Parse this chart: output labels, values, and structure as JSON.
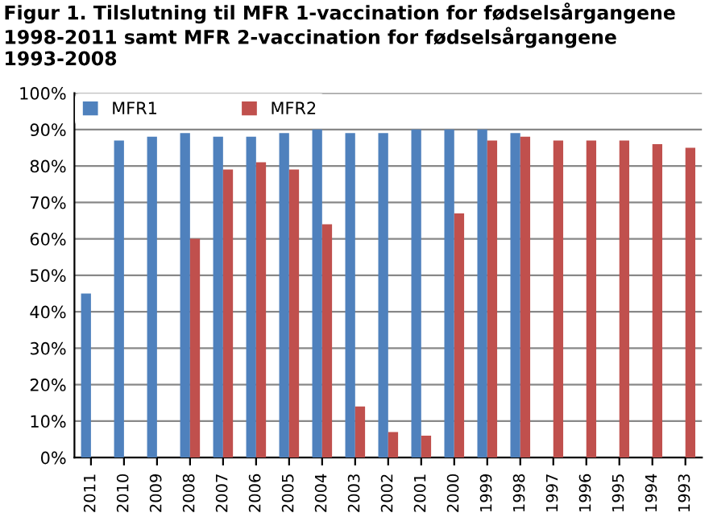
{
  "chart_data": {
    "type": "bar",
    "title": "Figur 1. Tilslutning til MFR 1-vaccination for fødselsårgangene 1998-2011 samt MFR 2-vaccination for fødselsårgangene 1993-2008",
    "categories": [
      "2011",
      "2010",
      "2009",
      "2008",
      "2007",
      "2006",
      "2005",
      "2004",
      "2003",
      "2002",
      "2001",
      "2000",
      "1999",
      "1998",
      "1997",
      "1996",
      "1995",
      "1994",
      "1993"
    ],
    "series": [
      {
        "name": "MFR1",
        "color": "#4f81bd",
        "values": [
          45,
          87,
          88,
          89,
          88,
          88,
          89,
          90,
          89,
          89,
          90,
          90,
          90,
          89,
          null,
          null,
          null,
          null,
          null
        ]
      },
      {
        "name": "MFR2",
        "color": "#c0504d",
        "values": [
          null,
          null,
          null,
          60,
          79,
          81,
          79,
          64,
          14,
          7,
          6,
          67,
          87,
          88,
          87,
          87,
          87,
          86,
          85
        ]
      }
    ],
    "ylim": [
      0,
      100
    ],
    "yticks": [
      {
        "value": 0,
        "label": "0%"
      },
      {
        "value": 10,
        "label": "10%"
      },
      {
        "value": 20,
        "label": "20%"
      },
      {
        "value": 30,
        "label": "30%"
      },
      {
        "value": 40,
        "label": "40%"
      },
      {
        "value": 50,
        "label": "50%"
      },
      {
        "value": 60,
        "label": "60%"
      },
      {
        "value": 70,
        "label": "70%"
      },
      {
        "value": 80,
        "label": "80%"
      },
      {
        "value": 90,
        "label": "90%"
      },
      {
        "value": 100,
        "label": "100%"
      }
    ],
    "grid": "y",
    "legend": "top left"
  }
}
